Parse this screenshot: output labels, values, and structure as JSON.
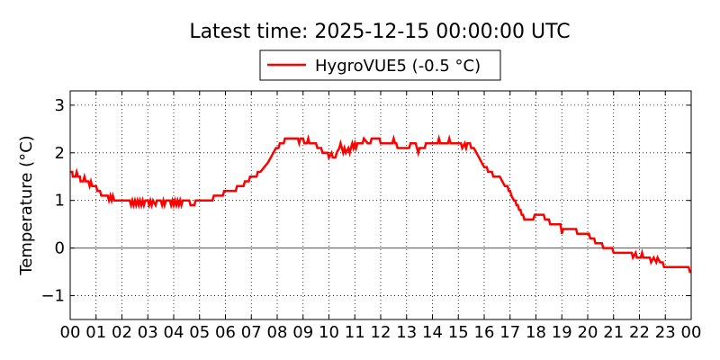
{
  "chart_data": {
    "type": "line",
    "title": "Latest time: 2025-12-15 00:00:00 UTC",
    "xlabel": "",
    "ylabel": "Temperature (°C)",
    "xlim": [
      0,
      24
    ],
    "ylim": [
      -1.5,
      3.3
    ],
    "x_ticks": [
      0,
      1,
      2,
      3,
      4,
      5,
      6,
      7,
      8,
      9,
      10,
      11,
      12,
      13,
      14,
      15,
      16,
      17,
      18,
      19,
      20,
      21,
      22,
      23,
      24
    ],
    "x_tick_labels": [
      "00",
      "01",
      "02",
      "03",
      "04",
      "05",
      "06",
      "07",
      "08",
      "09",
      "10",
      "11",
      "12",
      "13",
      "14",
      "15",
      "16",
      "17",
      "18",
      "19",
      "20",
      "21",
      "22",
      "23",
      "00"
    ],
    "y_ticks": [
      -1,
      0,
      1,
      2,
      3
    ],
    "y_tick_labels": [
      "−1",
      "0",
      "1",
      "2",
      "3"
    ],
    "grid": true,
    "zero_line": true,
    "legend_position": "top-center",
    "series": [
      {
        "name": "HygroVUE5 (-0.5 °C)",
        "color": "#ff0000",
        "points": [
          [
            0.0,
            1.6
          ],
          [
            0.08,
            1.6
          ],
          [
            0.1,
            1.5
          ],
          [
            0.2,
            1.5
          ],
          [
            0.25,
            1.6
          ],
          [
            0.3,
            1.5
          ],
          [
            0.38,
            1.5
          ],
          [
            0.4,
            1.4
          ],
          [
            0.5,
            1.4
          ],
          [
            0.55,
            1.5
          ],
          [
            0.6,
            1.4
          ],
          [
            0.7,
            1.4
          ],
          [
            0.75,
            1.3
          ],
          [
            0.8,
            1.4
          ],
          [
            0.85,
            1.3
          ],
          [
            1.0,
            1.3
          ],
          [
            1.05,
            1.2
          ],
          [
            1.15,
            1.2
          ],
          [
            1.2,
            1.1
          ],
          [
            1.45,
            1.1
          ],
          [
            1.5,
            1.0
          ],
          [
            1.55,
            1.1
          ],
          [
            1.6,
            1.0
          ],
          [
            1.65,
            1.1
          ],
          [
            1.7,
            1.0
          ],
          [
            2.3,
            1.0
          ],
          [
            2.35,
            0.9
          ],
          [
            2.4,
            1.0
          ],
          [
            2.45,
            0.9
          ],
          [
            2.5,
            1.0
          ],
          [
            2.55,
            0.9
          ],
          [
            2.6,
            1.0
          ],
          [
            2.65,
            0.9
          ],
          [
            2.7,
            1.0
          ],
          [
            2.75,
            0.9
          ],
          [
            2.8,
            1.0
          ],
          [
            2.85,
            0.9
          ],
          [
            2.9,
            1.0
          ],
          [
            3.0,
            1.0
          ],
          [
            3.05,
            0.9
          ],
          [
            3.1,
            1.0
          ],
          [
            3.15,
            0.9
          ],
          [
            3.2,
            1.0
          ],
          [
            3.3,
            0.9
          ],
          [
            3.35,
            1.0
          ],
          [
            3.5,
            1.0
          ],
          [
            3.55,
            0.9
          ],
          [
            3.6,
            1.0
          ],
          [
            3.65,
            0.9
          ],
          [
            3.7,
            1.0
          ],
          [
            3.85,
            1.0
          ],
          [
            3.9,
            0.9
          ],
          [
            3.95,
            1.0
          ],
          [
            4.0,
            0.9
          ],
          [
            4.05,
            1.0
          ],
          [
            4.1,
            0.9
          ],
          [
            4.15,
            1.0
          ],
          [
            4.2,
            0.9
          ],
          [
            4.25,
            1.0
          ],
          [
            4.3,
            0.9
          ],
          [
            4.35,
            1.0
          ],
          [
            4.6,
            1.0
          ],
          [
            4.65,
            0.9
          ],
          [
            4.8,
            0.9
          ],
          [
            4.85,
            1.0
          ],
          [
            5.5,
            1.0
          ],
          [
            5.55,
            1.1
          ],
          [
            5.9,
            1.1
          ],
          [
            5.95,
            1.2
          ],
          [
            6.4,
            1.2
          ],
          [
            6.45,
            1.3
          ],
          [
            6.7,
            1.3
          ],
          [
            6.75,
            1.4
          ],
          [
            6.9,
            1.4
          ],
          [
            6.95,
            1.5
          ],
          [
            7.2,
            1.5
          ],
          [
            7.25,
            1.6
          ],
          [
            7.35,
            1.6
          ],
          [
            7.5,
            1.7
          ],
          [
            7.65,
            1.8
          ],
          [
            7.75,
            1.9
          ],
          [
            7.85,
            2.0
          ],
          [
            7.95,
            2.1
          ],
          [
            8.05,
            2.1
          ],
          [
            8.1,
            2.2
          ],
          [
            8.25,
            2.2
          ],
          [
            8.3,
            2.3
          ],
          [
            8.8,
            2.3
          ],
          [
            8.85,
            2.2
          ],
          [
            8.9,
            2.3
          ],
          [
            9.0,
            2.3
          ],
          [
            9.05,
            2.2
          ],
          [
            9.15,
            2.2
          ],
          [
            9.2,
            2.3
          ],
          [
            9.25,
            2.2
          ],
          [
            9.5,
            2.2
          ],
          [
            9.55,
            2.1
          ],
          [
            9.7,
            2.1
          ],
          [
            9.75,
            2.0
          ],
          [
            9.95,
            2.0
          ],
          [
            10.0,
            1.9
          ],
          [
            10.1,
            2.0
          ],
          [
            10.15,
            1.9
          ],
          [
            10.25,
            1.9
          ],
          [
            10.3,
            2.0
          ],
          [
            10.4,
            2.1
          ],
          [
            10.45,
            2.2
          ],
          [
            10.5,
            2.1
          ],
          [
            10.55,
            2.0
          ],
          [
            10.6,
            2.1
          ],
          [
            10.65,
            2.0
          ],
          [
            10.75,
            2.1
          ],
          [
            10.8,
            2.0
          ],
          [
            10.85,
            2.1
          ],
          [
            10.9,
            2.2
          ],
          [
            10.95,
            2.1
          ],
          [
            11.0,
            2.2
          ],
          [
            11.05,
            2.1
          ],
          [
            11.1,
            2.2
          ],
          [
            11.3,
            2.2
          ],
          [
            11.35,
            2.3
          ],
          [
            11.5,
            2.2
          ],
          [
            11.6,
            2.2
          ],
          [
            11.65,
            2.3
          ],
          [
            11.95,
            2.3
          ],
          [
            12.0,
            2.2
          ],
          [
            12.45,
            2.2
          ],
          [
            12.5,
            2.3
          ],
          [
            12.55,
            2.2
          ],
          [
            12.6,
            2.2
          ],
          [
            12.65,
            2.1
          ],
          [
            13.1,
            2.1
          ],
          [
            13.15,
            2.2
          ],
          [
            13.35,
            2.2
          ],
          [
            13.4,
            2.1
          ],
          [
            13.45,
            2.0
          ],
          [
            13.5,
            2.1
          ],
          [
            13.7,
            2.1
          ],
          [
            13.75,
            2.2
          ],
          [
            14.2,
            2.2
          ],
          [
            14.25,
            2.3
          ],
          [
            14.3,
            2.2
          ],
          [
            14.6,
            2.2
          ],
          [
            14.65,
            2.3
          ],
          [
            14.7,
            2.2
          ],
          [
            15.1,
            2.2
          ],
          [
            15.15,
            2.1
          ],
          [
            15.25,
            2.2
          ],
          [
            15.3,
            2.1
          ],
          [
            15.35,
            2.2
          ],
          [
            15.45,
            2.2
          ],
          [
            15.5,
            2.1
          ],
          [
            15.6,
            2.1
          ],
          [
            15.7,
            2.0
          ],
          [
            15.8,
            1.9
          ],
          [
            15.9,
            1.8
          ],
          [
            16.0,
            1.7
          ],
          [
            16.1,
            1.7
          ],
          [
            16.15,
            1.6
          ],
          [
            16.3,
            1.6
          ],
          [
            16.35,
            1.5
          ],
          [
            16.6,
            1.5
          ],
          [
            16.7,
            1.4
          ],
          [
            16.8,
            1.3
          ],
          [
            16.9,
            1.3
          ],
          [
            16.95,
            1.2
          ],
          [
            17.0,
            1.2
          ],
          [
            17.05,
            1.1
          ],
          [
            17.15,
            1.0
          ],
          [
            17.2,
            1.0
          ],
          [
            17.25,
            0.9
          ],
          [
            17.3,
            0.9
          ],
          [
            17.35,
            0.8
          ],
          [
            17.4,
            0.8
          ],
          [
            17.45,
            0.7
          ],
          [
            17.5,
            0.7
          ],
          [
            17.55,
            0.6
          ],
          [
            17.9,
            0.6
          ],
          [
            17.95,
            0.7
          ],
          [
            18.3,
            0.7
          ],
          [
            18.35,
            0.6
          ],
          [
            18.5,
            0.6
          ],
          [
            18.55,
            0.5
          ],
          [
            18.95,
            0.5
          ],
          [
            19.0,
            0.3
          ],
          [
            19.05,
            0.4
          ],
          [
            19.55,
            0.4
          ],
          [
            19.6,
            0.3
          ],
          [
            20.05,
            0.3
          ],
          [
            20.1,
            0.2
          ],
          [
            20.25,
            0.2
          ],
          [
            20.3,
            0.1
          ],
          [
            20.55,
            0.1
          ],
          [
            20.6,
            0.0
          ],
          [
            20.95,
            0.0
          ],
          [
            21.0,
            -0.1
          ],
          [
            21.7,
            -0.1
          ],
          [
            21.75,
            -0.2
          ],
          [
            21.85,
            -0.1
          ],
          [
            21.9,
            -0.2
          ],
          [
            22.05,
            -0.2
          ],
          [
            22.1,
            -0.1
          ],
          [
            22.15,
            -0.2
          ],
          [
            22.4,
            -0.2
          ],
          [
            22.45,
            -0.3
          ],
          [
            22.55,
            -0.2
          ],
          [
            22.65,
            -0.3
          ],
          [
            22.7,
            -0.2
          ],
          [
            22.8,
            -0.3
          ],
          [
            22.9,
            -0.3
          ],
          [
            22.95,
            -0.4
          ],
          [
            23.9,
            -0.4
          ],
          [
            23.95,
            -0.5
          ],
          [
            24.0,
            -0.5
          ]
        ]
      }
    ]
  }
}
